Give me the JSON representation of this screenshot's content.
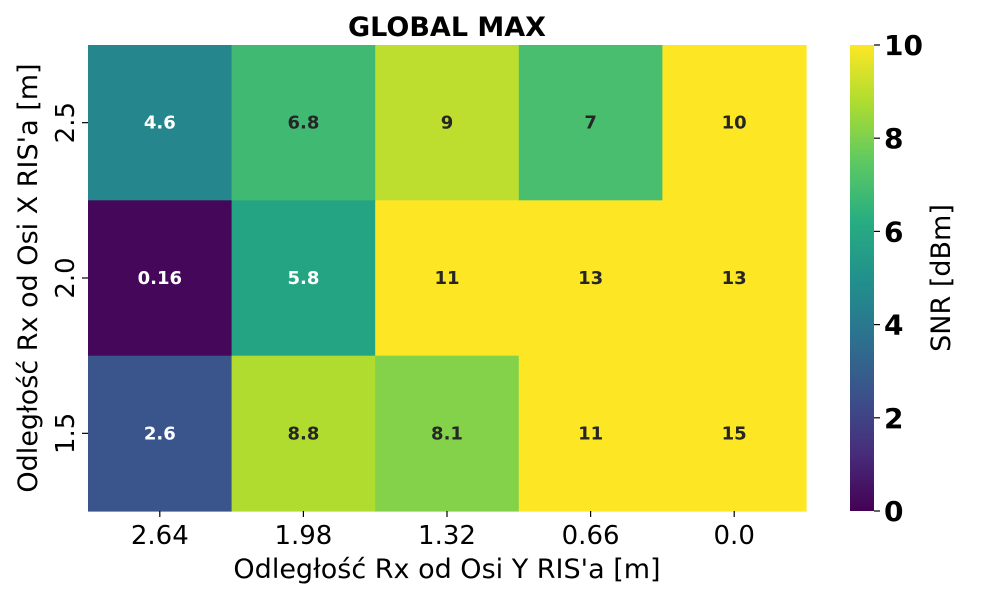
{
  "chart_data": {
    "type": "heatmap",
    "title": "GLOBAL MAX",
    "xlabel": "Odległość Rx od Osi Y RIS'a [m]",
    "ylabel": "Odległość Rx od Osi X RIS'a [m]",
    "x_categories": [
      "2.64",
      "1.98",
      "1.32",
      "0.66",
      "0.0"
    ],
    "y_categories": [
      "2.5",
      "2.0",
      "1.5"
    ],
    "values": [
      [
        4.6,
        6.8,
        9,
        7,
        10
      ],
      [
        0.16,
        5.8,
        11,
        13,
        13
      ],
      [
        2.6,
        8.8,
        8.1,
        11,
        15
      ]
    ],
    "cell_labels": [
      [
        "4.6",
        "6.8",
        "9",
        "7",
        "10"
      ],
      [
        "0.16",
        "5.8",
        "11",
        "13",
        "13"
      ],
      [
        "2.6",
        "8.8",
        "8.1",
        "11",
        "15"
      ]
    ],
    "colorbar": {
      "label": "SNR [dBm]",
      "range": [
        0,
        10
      ],
      "ticks": [
        "0",
        "2",
        "4",
        "6",
        "8",
        "10"
      ],
      "colormap": "viridis"
    }
  }
}
